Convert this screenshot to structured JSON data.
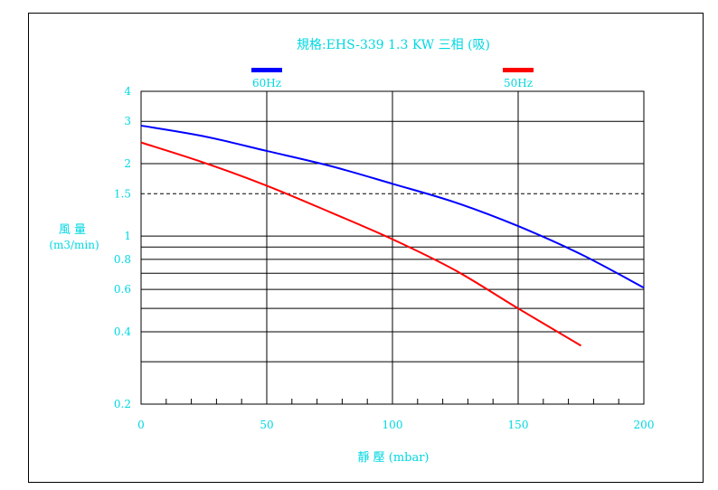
{
  "chart_data": {
    "type": "line",
    "title": "規格:EHS-339  1.3 KW 三相 (吸)",
    "xlabel": "靜 壓 (mbar)",
    "ylabel_line1": "風 量",
    "ylabel_line2": "(m3/min)",
    "xlim": [
      0,
      200
    ],
    "ylim": [
      0.2,
      4
    ],
    "y_scale": "log",
    "x_ticks": [
      0,
      50,
      100,
      150,
      200
    ],
    "x_tick_labels": [
      "0",
      "50",
      "100",
      "150",
      "200"
    ],
    "y_ticks": [
      0.2,
      0.4,
      0.6,
      0.8,
      1,
      1.5,
      2,
      3,
      4
    ],
    "y_tick_labels": [
      "0.2",
      "0.4",
      "0.6",
      "0.8",
      "1",
      "1.5",
      "2",
      "3",
      "4"
    ],
    "y_gridlines": [
      0.3,
      0.4,
      0.5,
      0.6,
      0.7,
      0.8,
      0.9,
      1,
      2,
      3
    ],
    "y_dashed_gridline": 1.5,
    "x_gridlines": [
      50,
      100,
      150
    ],
    "grid": true,
    "legend_placement": "top",
    "series": [
      {
        "name": "60Hz",
        "color": "#0000ff",
        "x": [
          0,
          25,
          50,
          75,
          100,
          125,
          150,
          175,
          200
        ],
        "y": [
          2.88,
          2.6,
          2.26,
          1.96,
          1.65,
          1.38,
          1.1,
          0.84,
          0.61
        ]
      },
      {
        "name": "50Hz",
        "color": "#ff0000",
        "x": [
          0,
          25,
          50,
          75,
          100,
          125,
          150,
          175
        ],
        "y": [
          2.45,
          2.02,
          1.62,
          1.26,
          0.97,
          0.72,
          0.5,
          0.35
        ]
      }
    ]
  }
}
